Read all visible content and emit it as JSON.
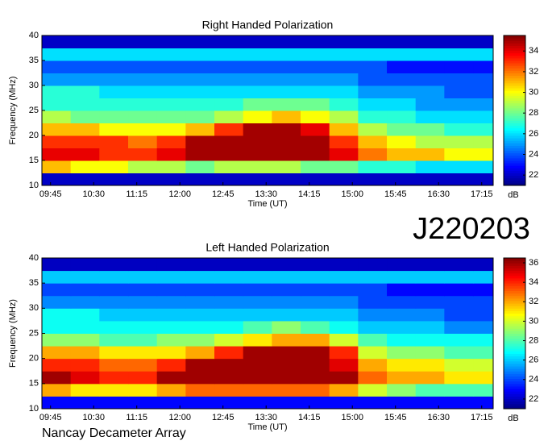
{
  "chart_data": [
    {
      "type": "heatmap",
      "title": "Right Handed Polarization",
      "x_label": "Time (UT)",
      "y_label": "Frequency (MHz)",
      "colorbar_label": "dB",
      "x_edges": [
        576,
        606,
        636,
        666,
        696,
        726,
        756,
        786,
        816,
        846,
        876,
        906,
        936,
        966,
        996,
        1026,
        1047
      ],
      "y_edges": [
        10,
        12.5,
        15,
        17.5,
        20,
        22.5,
        25,
        27.5,
        30,
        32.5,
        35,
        37.5,
        40
      ],
      "values": [
        [
          22,
          22,
          22,
          22,
          22,
          22,
          22,
          22,
          22,
          22,
          22,
          22,
          22,
          22,
          22,
          22
        ],
        [
          31,
          30,
          30,
          29,
          29,
          28,
          29,
          29,
          29,
          28,
          28,
          27,
          27,
          26,
          26,
          26
        ],
        [
          34,
          34,
          33,
          33,
          34,
          35,
          35,
          35,
          35,
          35,
          34,
          32,
          31,
          31,
          30,
          30
        ],
        [
          33,
          33,
          33,
          32,
          33,
          35,
          35,
          35,
          35,
          35,
          33,
          31,
          30,
          29,
          29,
          29
        ],
        [
          31,
          31,
          30,
          30,
          30,
          31,
          33,
          35,
          35,
          34,
          31,
          29,
          28,
          28,
          27,
          27
        ],
        [
          29,
          28,
          28,
          28,
          28,
          28,
          29,
          30,
          31,
          30,
          29,
          27,
          27,
          26,
          26,
          26
        ],
        [
          27,
          27,
          27,
          27,
          27,
          27,
          27,
          28,
          28,
          28,
          27,
          26,
          26,
          25,
          25,
          25
        ],
        [
          27,
          27,
          26,
          26,
          26,
          26,
          26,
          26,
          26,
          26,
          26,
          25,
          25,
          25,
          24,
          24
        ],
        [
          25,
          25,
          25,
          25,
          25,
          25,
          25,
          25,
          25,
          25,
          25,
          24,
          24,
          24,
          24,
          24
        ],
        [
          24,
          24,
          24,
          24,
          24,
          24,
          24,
          24,
          24,
          24,
          24,
          24,
          23,
          23,
          23,
          23
        ],
        [
          26,
          26,
          26,
          26,
          26,
          26,
          26,
          26,
          26,
          26,
          26,
          26,
          26,
          26,
          26,
          26
        ],
        [
          22,
          22,
          22,
          22,
          22,
          22,
          22,
          22,
          22,
          22,
          22,
          22,
          22,
          22,
          22,
          22
        ]
      ],
      "xlim": [
        576,
        1047
      ],
      "ylim": [
        10,
        40
      ],
      "clim": [
        21,
        35.5
      ],
      "xticks": [
        {
          "value": 585,
          "label": "09:45"
        },
        {
          "value": 630,
          "label": "10:30"
        },
        {
          "value": 675,
          "label": "11:15"
        },
        {
          "value": 720,
          "label": "12:00"
        },
        {
          "value": 765,
          "label": "12:45"
        },
        {
          "value": 810,
          "label": "13:30"
        },
        {
          "value": 855,
          "label": "14:15"
        },
        {
          "value": 900,
          "label": "15:00"
        },
        {
          "value": 945,
          "label": "15:45"
        },
        {
          "value": 990,
          "label": "16:30"
        },
        {
          "value": 1035,
          "label": "17:15"
        }
      ],
      "yticks": [
        10,
        15,
        20,
        25,
        30,
        35,
        40
      ],
      "cticks": [
        22,
        24,
        26,
        28,
        30,
        32,
        34
      ]
    },
    {
      "type": "heatmap",
      "title": "Left Handed Polarization",
      "x_label": "Time (UT)",
      "y_label": "Frequency (MHz)",
      "colorbar_label": "dB",
      "x_edges": [
        576,
        606,
        636,
        666,
        696,
        726,
        756,
        786,
        816,
        846,
        876,
        906,
        936,
        966,
        996,
        1026,
        1047
      ],
      "y_edges": [
        10,
        12.5,
        15,
        17.5,
        20,
        22.5,
        25,
        27.5,
        30,
        32.5,
        35,
        37.5,
        40
      ],
      "values": [
        [
          23,
          23,
          23,
          23,
          23,
          23,
          23,
          23,
          23,
          23,
          23,
          23,
          23,
          23,
          23,
          23
        ],
        [
          32,
          31,
          31,
          31,
          32,
          33,
          33,
          33,
          33,
          33,
          32,
          30,
          29,
          28,
          28,
          28
        ],
        [
          36,
          35,
          34,
          34,
          36,
          36,
          36,
          36,
          36,
          36,
          36,
          33,
          32,
          32,
          31,
          31
        ],
        [
          34,
          34,
          33,
          33,
          34,
          36,
          36,
          36,
          36,
          36,
          35,
          32,
          31,
          31,
          30,
          30
        ],
        [
          32,
          32,
          31,
          31,
          31,
          32,
          34,
          36,
          36,
          36,
          34,
          30,
          29,
          29,
          28,
          28
        ],
        [
          29,
          29,
          28,
          28,
          29,
          29,
          30,
          31,
          32,
          32,
          30,
          28,
          27,
          27,
          27,
          27
        ],
        [
          27,
          27,
          27,
          27,
          27,
          27,
          27,
          28,
          29,
          28,
          27,
          26,
          26,
          26,
          25,
          25
        ],
        [
          27,
          27,
          26,
          26,
          26,
          26,
          26,
          26,
          26,
          26,
          26,
          25,
          25,
          25,
          24,
          24
        ],
        [
          25,
          25,
          25,
          25,
          25,
          25,
          25,
          25,
          25,
          25,
          25,
          24,
          24,
          24,
          24,
          24
        ],
        [
          24,
          24,
          24,
          24,
          24,
          24,
          24,
          24,
          24,
          24,
          24,
          24,
          23,
          23,
          23,
          23
        ],
        [
          26,
          26,
          26,
          26,
          26,
          26,
          26,
          26,
          26,
          26,
          26,
          26,
          26,
          26,
          26,
          26
        ],
        [
          22,
          22,
          22,
          22,
          22,
          22,
          22,
          22,
          22,
          22,
          22,
          22,
          22,
          22,
          22,
          22
        ]
      ],
      "xlim": [
        576,
        1047
      ],
      "ylim": [
        10,
        40
      ],
      "clim": [
        21,
        36.5
      ],
      "xticks": [
        {
          "value": 585,
          "label": "09:45"
        },
        {
          "value": 630,
          "label": "10:30"
        },
        {
          "value": 675,
          "label": "11:15"
        },
        {
          "value": 720,
          "label": "12:00"
        },
        {
          "value": 765,
          "label": "12:45"
        },
        {
          "value": 810,
          "label": "13:30"
        },
        {
          "value": 855,
          "label": "14:15"
        },
        {
          "value": 900,
          "label": "15:00"
        },
        {
          "value": 945,
          "label": "15:45"
        },
        {
          "value": 990,
          "label": "16:30"
        },
        {
          "value": 1035,
          "label": "17:15"
        }
      ],
      "yticks": [
        10,
        15,
        20,
        25,
        30,
        35,
        40
      ],
      "cticks": [
        22,
        24,
        26,
        28,
        30,
        32,
        34,
        36
      ]
    }
  ],
  "event_label": "J220203",
  "footer": "Nancay Decameter Array"
}
